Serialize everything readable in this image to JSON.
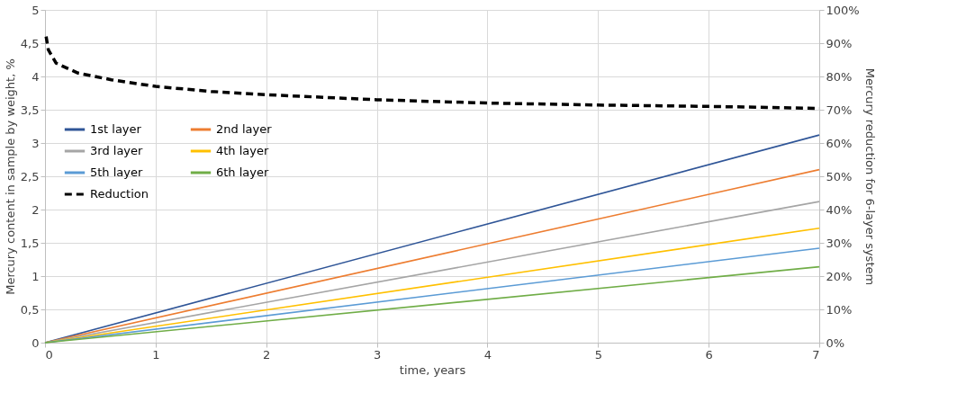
{
  "chart_data": {
    "type": "line",
    "xlabel": "time, years",
    "ylabel": "Mercury content in sample by weight, %",
    "y2label": "Mercury reduction for 6-layer system",
    "xlim": [
      0,
      7
    ],
    "xticks": [
      0,
      1,
      2,
      3,
      4,
      5,
      6,
      7
    ],
    "ylim": [
      0,
      5
    ],
    "yticks": [
      0,
      {
        "value": 0.5,
        "label": "0,5"
      },
      1,
      {
        "value": 1.5,
        "label": "1,5"
      },
      2,
      {
        "value": 2.5,
        "label": "2,5"
      },
      3,
      {
        "value": 3.5,
        "label": "3,5"
      },
      4,
      {
        "value": 4.5,
        "label": "4,5"
      },
      5
    ],
    "y2lim": [
      0,
      100
    ],
    "y2ticks": [
      {
        "value": 0,
        "label": "0%"
      },
      {
        "value": 10,
        "label": "10%"
      },
      {
        "value": 20,
        "label": "20%"
      },
      {
        "value": 30,
        "label": "30%"
      },
      {
        "value": 40,
        "label": "40%"
      },
      {
        "value": 50,
        "label": "50%"
      },
      {
        "value": 60,
        "label": "60%"
      },
      {
        "value": 70,
        "label": "70%"
      },
      {
        "value": 80,
        "label": "80%"
      },
      {
        "value": 90,
        "label": "90%"
      },
      {
        "value": 100,
        "label": "100%"
      }
    ],
    "grid": true,
    "legend": "left",
    "line_style": "solid",
    "series": [
      {
        "name": "1st layer",
        "color": "#2f5597",
        "x": [
          0,
          7
        ],
        "values": [
          0,
          3.12
        ]
      },
      {
        "name": "2nd layer",
        "color": "#ed7d31",
        "x": [
          0,
          7
        ],
        "values": [
          0,
          2.6
        ]
      },
      {
        "name": "3rd layer",
        "color": "#a5a5a5",
        "x": [
          0,
          7
        ],
        "values": [
          0,
          2.12
        ]
      },
      {
        "name": "4th layer",
        "color": "#ffc000",
        "x": [
          0,
          7
        ],
        "values": [
          0,
          1.72
        ]
      },
      {
        "name": "5th layer",
        "color": "#5b9bd5",
        "x": [
          0,
          7
        ],
        "values": [
          0,
          1.42
        ]
      },
      {
        "name": "6th layer",
        "color": "#70ad47",
        "x": [
          0,
          7
        ],
        "values": [
          0,
          1.14
        ]
      },
      {
        "name": "Reduction",
        "color": "#000000",
        "axis": "y2",
        "line_style": "dashed",
        "x": [
          0.01,
          0.03,
          0.1,
          0.3,
          0.6,
          1,
          1.5,
          2,
          3,
          4,
          5,
          6,
          7
        ],
        "values": [
          92,
          88,
          84,
          81,
          79,
          77,
          75.5,
          74.5,
          73,
          72,
          71.4,
          71,
          70.4
        ]
      }
    ]
  }
}
